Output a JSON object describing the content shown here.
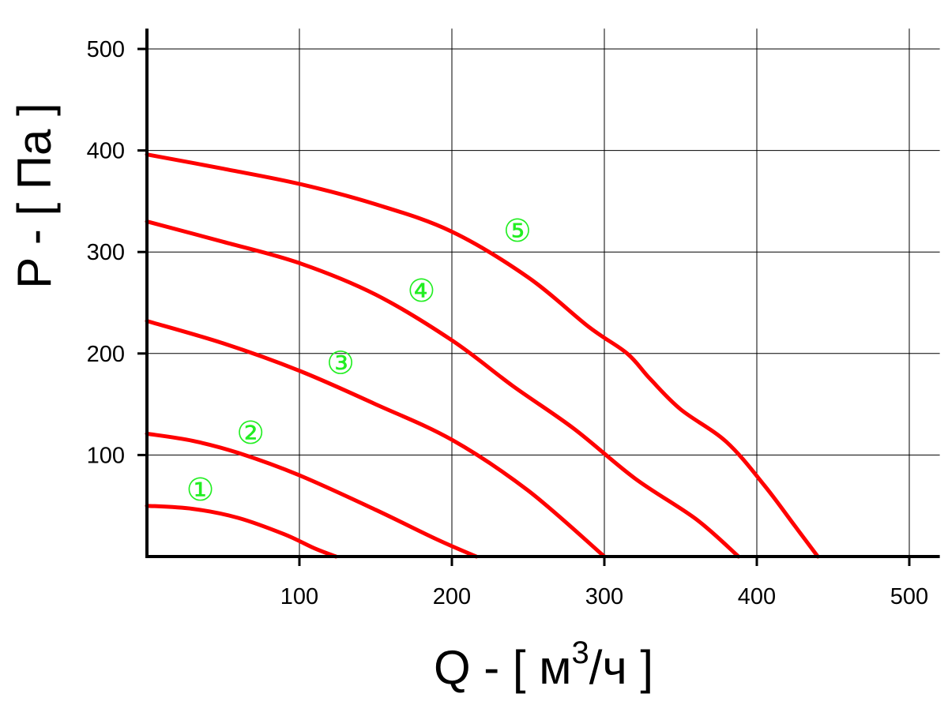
{
  "chart_data": {
    "type": "line",
    "title": "",
    "xlabel": "Q - [ м",
    "xlabel_sup": "3",
    "xlabel_suffix": "/ч ]",
    "ylabel": "P - [ Па ]",
    "xlim": [
      0,
      520
    ],
    "ylim": [
      0,
      520
    ],
    "x_ticks": [
      100,
      200,
      300,
      400,
      500
    ],
    "y_ticks": [
      100,
      200,
      300,
      400,
      500
    ],
    "grid": true,
    "line_color": "#ff0000",
    "label_color": "#22ee22",
    "series": [
      {
        "label": "①",
        "label_pos": [
          35,
          66
        ],
        "points": [
          [
            0,
            50
          ],
          [
            30,
            47
          ],
          [
            60,
            38
          ],
          [
            90,
            22
          ],
          [
            110,
            8
          ],
          [
            124,
            0
          ]
        ]
      },
      {
        "label": "②",
        "label_pos": [
          68,
          122
        ],
        "points": [
          [
            0,
            121
          ],
          [
            30,
            114
          ],
          [
            60,
            102
          ],
          [
            100,
            80
          ],
          [
            150,
            46
          ],
          [
            190,
            17
          ],
          [
            216,
            0
          ]
        ]
      },
      {
        "label": "③",
        "label_pos": [
          127,
          191
        ],
        "points": [
          [
            0,
            232
          ],
          [
            50,
            210
          ],
          [
            100,
            183
          ],
          [
            150,
            150
          ],
          [
            200,
            115
          ],
          [
            250,
            65
          ],
          [
            300,
            0
          ]
        ]
      },
      {
        "label": "④",
        "label_pos": [
          180,
          262
        ],
        "points": [
          [
            0,
            330
          ],
          [
            50,
            310
          ],
          [
            100,
            289
          ],
          [
            150,
            258
          ],
          [
            200,
            213
          ],
          [
            240,
            168
          ],
          [
            280,
            126
          ],
          [
            320,
            77
          ],
          [
            360,
            37
          ],
          [
            388,
            0
          ]
        ]
      },
      {
        "label": "⑤",
        "label_pos": [
          243,
          321
        ],
        "points": [
          [
            0,
            396
          ],
          [
            50,
            382
          ],
          [
            100,
            367
          ],
          [
            150,
            347
          ],
          [
            200,
            320
          ],
          [
            250,
            275
          ],
          [
            290,
            226
          ],
          [
            315,
            200
          ],
          [
            330,
            175
          ],
          [
            350,
            145
          ],
          [
            380,
            113
          ],
          [
            405,
            70
          ],
          [
            425,
            30
          ],
          [
            440,
            0
          ]
        ]
      }
    ]
  }
}
